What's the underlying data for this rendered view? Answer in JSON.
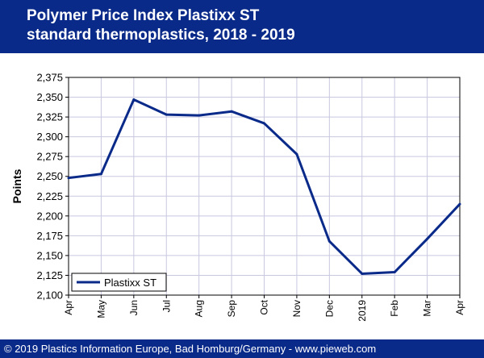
{
  "header": {
    "line1": "Polymer Price Index Plastixx ST",
    "line2": "standard thermoplastics, 2018 - 2019"
  },
  "footer": {
    "text": "© 2019 Plastics Information Europe, Bad Homburg/Germany - www.pieweb.com"
  },
  "colors": {
    "banner": "#0a2a8a",
    "line": "#0a2a8a",
    "grid": "#c8c8e0"
  },
  "chart_data": {
    "type": "line",
    "title": "",
    "xlabel": "",
    "ylabel": "Points",
    "categories": [
      "Apr",
      "May",
      "Jun",
      "Jul",
      "Aug",
      "Sep",
      "Oct",
      "Nov",
      "Dec",
      "2019",
      "Feb",
      "Mar",
      "Apr"
    ],
    "ylim": [
      2100,
      2375
    ],
    "yticks": [
      2100,
      2125,
      2150,
      2175,
      2200,
      2225,
      2250,
      2275,
      2300,
      2325,
      2350,
      2375
    ],
    "ytick_labels": [
      "2,100",
      "2,125",
      "2,150",
      "2,175",
      "2,200",
      "2,225",
      "2,250",
      "2,275",
      "2,300",
      "2,325",
      "2,350",
      "2,375"
    ],
    "grid": true,
    "legend_position": "bottom-left",
    "series": [
      {
        "name": "Plastixx ST",
        "values": [
          2248,
          2253,
          2347,
          2328,
          2327,
          2332,
          2317,
          2278,
          2168,
          2127,
          2129,
          2171,
          2215
        ]
      }
    ]
  }
}
